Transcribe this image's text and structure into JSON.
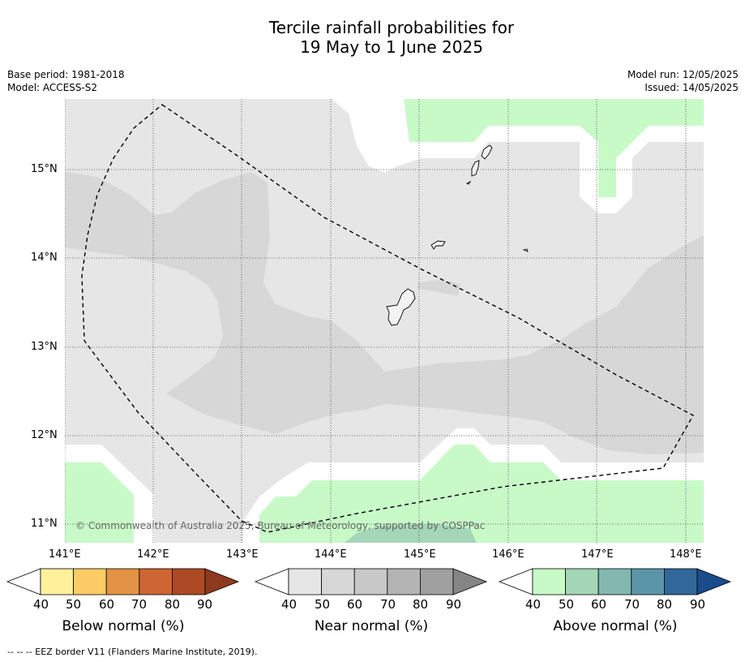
{
  "title": {
    "line1": "Tercile rainfall probabilities for",
    "line2": "19 May to 1 June 2025"
  },
  "meta": {
    "base_period": "Base period: 1981-2018",
    "model": "Model: ACCESS-S2",
    "model_run": "Model run: 12/05/2025",
    "issued": "Issued: 14/05/2025"
  },
  "axes": {
    "lon_labels": [
      "141°E",
      "142°E",
      "143°E",
      "144°E",
      "145°E",
      "146°E",
      "147°E",
      "148°E"
    ],
    "lat_labels": [
      "15°N",
      "14°N",
      "13°N",
      "12°N",
      "11°N"
    ]
  },
  "colorbars": [
    {
      "label": "Below normal (%)",
      "ticks": [
        "40",
        "50",
        "60",
        "70",
        "80",
        "90"
      ],
      "colors": [
        "#fff09c",
        "#fdcc66",
        "#e29344",
        "#cd6433",
        "#ad4a25",
        "#8e3a1e"
      ]
    },
    {
      "label": "Near normal (%)",
      "ticks": [
        "40",
        "50",
        "60",
        "70",
        "80",
        "90"
      ],
      "colors": [
        "#e6e6e6",
        "#d7d7d7",
        "#c8c8c8",
        "#b4b4b4",
        "#a0a0a0",
        "#858585"
      ]
    },
    {
      "label": "Above normal (%)",
      "ticks": [
        "40",
        "50",
        "60",
        "70",
        "80",
        "90"
      ],
      "colors": [
        "#c8fac8",
        "#a4d6b8",
        "#82b8b0",
        "#5a96a8",
        "#316799",
        "#1a4b8a"
      ]
    }
  ],
  "copyright": "© Commonwealth of Australia 2025, Bureau of Meteorology, supported by COSPPac",
  "eez_note": "--  --  -- EEZ border V11 (Flanders Marine Institute, 2019).",
  "colors": {
    "near_40": "#e6e6e6",
    "near_50": "#d7d7d7",
    "above_40": "#c8fac8",
    "above_50": "#a4d6b8",
    "white": "#ffffff"
  }
}
